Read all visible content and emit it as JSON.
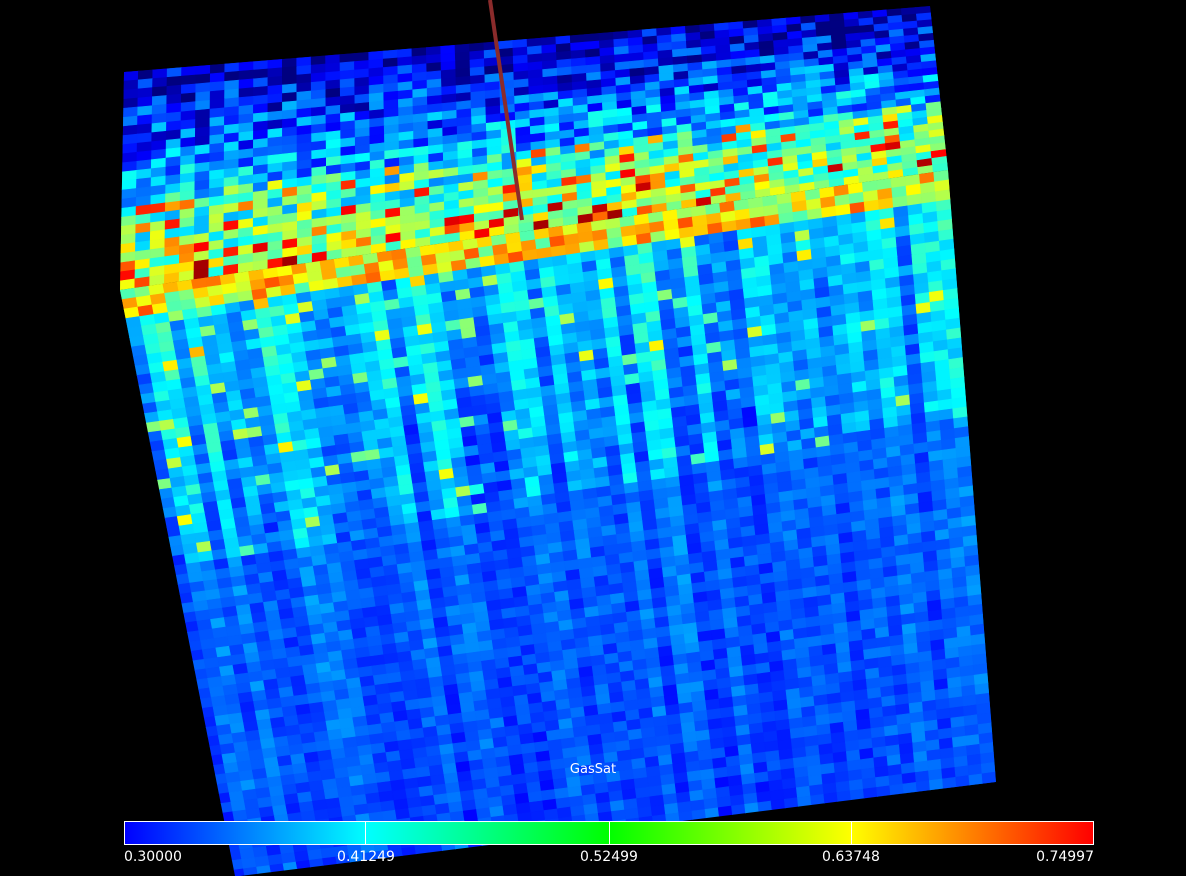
{
  "viewer": {
    "background": "#000000",
    "well_color": "#8b2b2b"
  },
  "legend": {
    "title": "GasSat",
    "min": 0.3,
    "max": 0.74997,
    "gradient": [
      "#0000ff",
      "#00ffff",
      "#00ff00",
      "#ffff00",
      "#ff0000"
    ],
    "ticks": [
      "0.30000",
      "0.41249",
      "0.52499",
      "0.63748",
      "0.74997"
    ],
    "tick_values": [
      0.3,
      0.41249,
      0.52499,
      0.63748,
      0.74997
    ]
  }
}
